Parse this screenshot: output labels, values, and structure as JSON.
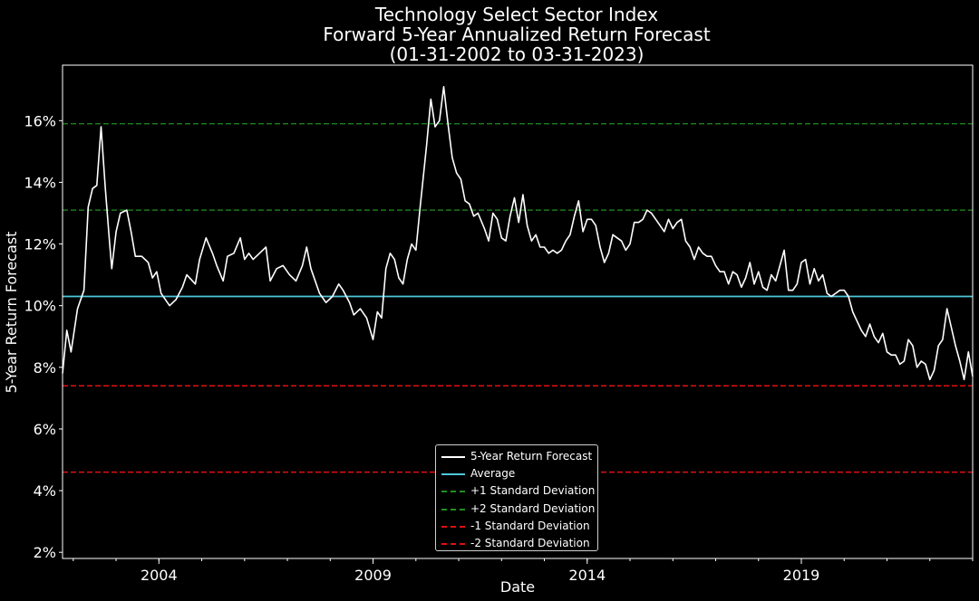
{
  "chart_data": {
    "type": "line",
    "title": "Technology Select Sector Index",
    "subtitle": "Forward 5-Year Annualized Return Forecast",
    "date_range": "(01-31-2002 to 03-31-2023)",
    "xlabel": "Date",
    "ylabel": "5-Year Return Forecast",
    "x_ticks": [
      "2004",
      "2009",
      "2014",
      "2019"
    ],
    "y_ticks": [
      "2%",
      "4%",
      "6%",
      "8%",
      "10%",
      "12%",
      "14%",
      "16%"
    ],
    "xlim": [
      2002.0,
      2023.25
    ],
    "ylim": [
      1.8,
      17.8
    ],
    "grid": false,
    "legend_position": "bottom-center",
    "series": [
      {
        "name": "5-Year Return Forecast",
        "color": "#ffffff",
        "style": "solid",
        "points": [
          [
            2002.0,
            7.8
          ],
          [
            2002.1,
            9.2
          ],
          [
            2002.2,
            8.5
          ],
          [
            2002.35,
            9.9
          ],
          [
            2002.5,
            10.5
          ],
          [
            2002.6,
            13.2
          ],
          [
            2002.7,
            13.8
          ],
          [
            2002.8,
            13.9
          ],
          [
            2002.9,
            15.8
          ],
          [
            2003.0,
            13.8
          ],
          [
            2003.1,
            12.0
          ],
          [
            2003.15,
            11.2
          ],
          [
            2003.25,
            12.4
          ],
          [
            2003.35,
            13.0
          ],
          [
            2003.5,
            13.1
          ],
          [
            2003.6,
            12.4
          ],
          [
            2003.7,
            11.6
          ],
          [
            2003.85,
            11.6
          ],
          [
            2004.0,
            11.4
          ],
          [
            2004.1,
            10.9
          ],
          [
            2004.2,
            11.1
          ],
          [
            2004.3,
            10.4
          ],
          [
            2004.4,
            10.2
          ],
          [
            2004.5,
            10.0
          ],
          [
            2004.65,
            10.2
          ],
          [
            2004.8,
            10.6
          ],
          [
            2004.9,
            11.0
          ],
          [
            2005.1,
            10.7
          ],
          [
            2005.2,
            11.5
          ],
          [
            2005.35,
            12.2
          ],
          [
            2005.5,
            11.7
          ],
          [
            2005.6,
            11.3
          ],
          [
            2005.75,
            10.8
          ],
          [
            2005.85,
            11.6
          ],
          [
            2006.0,
            11.7
          ],
          [
            2006.15,
            12.2
          ],
          [
            2006.25,
            11.5
          ],
          [
            2006.35,
            11.7
          ],
          [
            2006.45,
            11.5
          ],
          [
            2006.6,
            11.7
          ],
          [
            2006.75,
            11.9
          ],
          [
            2006.85,
            10.8
          ],
          [
            2007.0,
            11.2
          ],
          [
            2007.15,
            11.3
          ],
          [
            2007.3,
            11.0
          ],
          [
            2007.45,
            10.8
          ],
          [
            2007.6,
            11.3
          ],
          [
            2007.7,
            11.9
          ],
          [
            2007.8,
            11.2
          ],
          [
            2008.0,
            10.4
          ],
          [
            2008.15,
            10.1
          ],
          [
            2008.3,
            10.3
          ],
          [
            2008.45,
            10.7
          ],
          [
            2008.55,
            10.5
          ],
          [
            2008.7,
            10.1
          ],
          [
            2008.8,
            9.7
          ],
          [
            2008.95,
            9.9
          ],
          [
            2009.1,
            9.6
          ],
          [
            2009.25,
            8.9
          ],
          [
            2009.35,
            9.8
          ],
          [
            2009.45,
            9.6
          ],
          [
            2009.55,
            11.2
          ],
          [
            2009.65,
            11.7
          ],
          [
            2009.75,
            11.5
          ],
          [
            2009.85,
            10.9
          ],
          [
            2009.95,
            10.7
          ],
          [
            2010.05,
            11.5
          ],
          [
            2010.15,
            12.0
          ],
          [
            2010.25,
            11.8
          ],
          [
            2010.35,
            13.2
          ],
          [
            2010.5,
            15.2
          ],
          [
            2010.6,
            16.7
          ],
          [
            2010.7,
            15.8
          ],
          [
            2010.8,
            16.0
          ],
          [
            2010.9,
            17.1
          ],
          [
            2011.0,
            15.9
          ],
          [
            2011.1,
            14.8
          ],
          [
            2011.2,
            14.3
          ],
          [
            2011.3,
            14.1
          ],
          [
            2011.4,
            13.4
          ],
          [
            2011.5,
            13.3
          ],
          [
            2011.6,
            12.9
          ],
          [
            2011.7,
            13.0
          ],
          [
            2011.85,
            12.5
          ],
          [
            2011.95,
            12.1
          ],
          [
            2012.05,
            13.0
          ],
          [
            2012.15,
            12.8
          ],
          [
            2012.25,
            12.2
          ],
          [
            2012.35,
            12.1
          ],
          [
            2012.45,
            12.9
          ],
          [
            2012.55,
            13.5
          ],
          [
            2012.65,
            12.7
          ],
          [
            2012.75,
            13.6
          ],
          [
            2012.85,
            12.6
          ],
          [
            2012.95,
            12.1
          ],
          [
            2013.05,
            12.3
          ],
          [
            2013.15,
            11.9
          ],
          [
            2013.25,
            11.9
          ],
          [
            2013.35,
            11.7
          ],
          [
            2013.45,
            11.8
          ],
          [
            2013.55,
            11.7
          ],
          [
            2013.65,
            11.8
          ],
          [
            2013.75,
            12.1
          ],
          [
            2013.85,
            12.3
          ],
          [
            2013.95,
            12.9
          ],
          [
            2014.05,
            13.4
          ],
          [
            2014.15,
            12.4
          ],
          [
            2014.25,
            12.8
          ],
          [
            2014.35,
            12.8
          ],
          [
            2014.45,
            12.6
          ],
          [
            2014.55,
            11.9
          ],
          [
            2014.65,
            11.4
          ],
          [
            2014.75,
            11.7
          ],
          [
            2014.85,
            12.3
          ],
          [
            2014.95,
            12.2
          ],
          [
            2015.05,
            12.1
          ],
          [
            2015.15,
            11.8
          ],
          [
            2015.25,
            12.0
          ],
          [
            2015.35,
            12.7
          ],
          [
            2015.45,
            12.7
          ],
          [
            2015.55,
            12.8
          ],
          [
            2015.65,
            13.1
          ],
          [
            2015.75,
            13.0
          ],
          [
            2015.85,
            12.8
          ],
          [
            2015.95,
            12.6
          ],
          [
            2016.05,
            12.4
          ],
          [
            2016.15,
            12.8
          ],
          [
            2016.25,
            12.5
          ],
          [
            2016.35,
            12.7
          ],
          [
            2016.45,
            12.8
          ],
          [
            2016.55,
            12.1
          ],
          [
            2016.65,
            11.9
          ],
          [
            2016.75,
            11.5
          ],
          [
            2016.85,
            11.9
          ],
          [
            2016.95,
            11.7
          ],
          [
            2017.05,
            11.6
          ],
          [
            2017.15,
            11.6
          ],
          [
            2017.25,
            11.3
          ],
          [
            2017.35,
            11.1
          ],
          [
            2017.45,
            11.1
          ],
          [
            2017.55,
            10.7
          ],
          [
            2017.65,
            11.1
          ],
          [
            2017.75,
            11.0
          ],
          [
            2017.85,
            10.6
          ],
          [
            2017.95,
            10.9
          ],
          [
            2018.05,
            11.4
          ],
          [
            2018.15,
            10.7
          ],
          [
            2018.25,
            11.1
          ],
          [
            2018.35,
            10.6
          ],
          [
            2018.45,
            10.5
          ],
          [
            2018.55,
            11.0
          ],
          [
            2018.65,
            10.8
          ],
          [
            2018.75,
            11.3
          ],
          [
            2018.85,
            11.8
          ],
          [
            2018.95,
            10.5
          ],
          [
            2019.05,
            10.5
          ],
          [
            2019.15,
            10.7
          ],
          [
            2019.25,
            11.4
          ],
          [
            2019.35,
            11.5
          ],
          [
            2019.45,
            10.7
          ],
          [
            2019.55,
            11.2
          ],
          [
            2019.65,
            10.8
          ],
          [
            2019.75,
            11.0
          ],
          [
            2019.85,
            10.4
          ],
          [
            2019.95,
            10.3
          ],
          [
            2020.05,
            10.4
          ],
          [
            2020.15,
            10.5
          ],
          [
            2020.25,
            10.5
          ],
          [
            2020.35,
            10.3
          ],
          [
            2020.45,
            9.8
          ],
          [
            2020.55,
            9.5
          ],
          [
            2020.65,
            9.2
          ],
          [
            2020.75,
            9.0
          ],
          [
            2020.85,
            9.4
          ],
          [
            2020.95,
            9.0
          ],
          [
            2021.05,
            8.8
          ],
          [
            2021.15,
            9.1
          ],
          [
            2021.25,
            8.5
          ],
          [
            2021.35,
            8.4
          ],
          [
            2021.45,
            8.4
          ],
          [
            2021.55,
            8.1
          ],
          [
            2021.65,
            8.2
          ],
          [
            2021.75,
            8.9
          ],
          [
            2021.85,
            8.7
          ],
          [
            2021.95,
            8.0
          ],
          [
            2022.05,
            8.2
          ],
          [
            2022.15,
            8.1
          ],
          [
            2022.25,
            7.6
          ],
          [
            2022.35,
            7.9
          ],
          [
            2022.45,
            8.7
          ],
          [
            2022.55,
            8.9
          ],
          [
            2022.65,
            9.9
          ],
          [
            2022.75,
            9.3
          ],
          [
            2022.85,
            8.7
          ],
          [
            2022.95,
            8.2
          ],
          [
            2023.05,
            7.6
          ],
          [
            2023.15,
            8.5
          ],
          [
            2023.25,
            7.7
          ]
        ]
      },
      {
        "name": "Average",
        "color": "#4fc8dc",
        "style": "solid",
        "value": 10.3
      },
      {
        "name": "+1 Standard Deviation",
        "color": "#1f8f1f",
        "style": "dashed",
        "value": 13.1
      },
      {
        "name": "+2 Standard Deviation",
        "color": "#1f8f1f",
        "style": "dashed",
        "value": 15.9
      },
      {
        "name": "-1 Standard Deviation",
        "color": "#e01010",
        "style": "dashed",
        "value": 7.4
      },
      {
        "name": "-2 Standard Deviation",
        "color": "#e01010",
        "style": "dashed",
        "value": 4.6
      }
    ]
  }
}
